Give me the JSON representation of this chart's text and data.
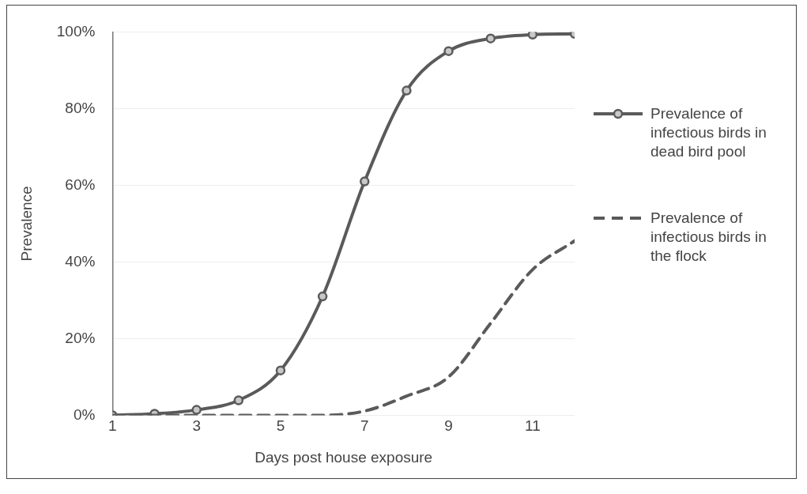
{
  "chart_data": {
    "type": "line",
    "xlabel": "Days post house exposure",
    "ylabel": "Prevalence",
    "x": [
      1,
      2,
      3,
      4,
      5,
      6,
      7,
      8,
      9,
      10,
      11,
      12
    ],
    "xlim": [
      1,
      12
    ],
    "xticks": [
      1,
      3,
      5,
      7,
      9,
      11
    ],
    "ylim": [
      0,
      100
    ],
    "yticks": [
      {
        "value": 0,
        "label": "0%"
      },
      {
        "value": 20,
        "label": "20%"
      },
      {
        "value": 40,
        "label": "40%"
      },
      {
        "value": 60,
        "label": "60%"
      },
      {
        "value": 80,
        "label": "80%"
      },
      {
        "value": 100,
        "label": "100%"
      }
    ],
    "grid": "y",
    "legend": "right",
    "series": [
      {
        "name": "Prevalence of infectious birds in dead bird pool",
        "color": "#5a5a5a",
        "marker": "circle",
        "line_style": "solid",
        "values": [
          0,
          0.4,
          1.4,
          3.9,
          11.7,
          31,
          61,
          84.7,
          95,
          98.3,
          99.3,
          99.5
        ]
      },
      {
        "name": "Prevalence of infectious birds in the flock",
        "color": "#5a5a5a",
        "marker": "none",
        "line_style": "dashed",
        "values": [
          0,
          0,
          0,
          0,
          0,
          0,
          1.1,
          5,
          10,
          24,
          38,
          45.5
        ]
      }
    ]
  }
}
